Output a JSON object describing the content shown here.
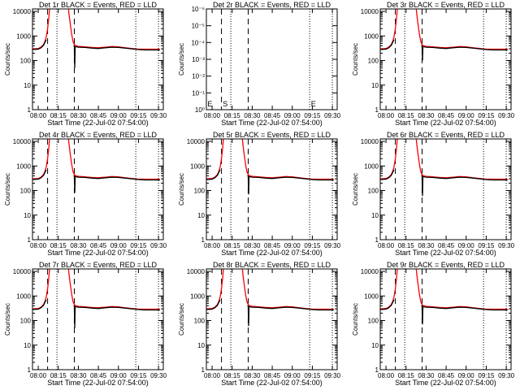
{
  "chart_data": {
    "type": "line",
    "layout": "3x3 grid",
    "xlabel": "Start Time (22-Jul-02 07:54:00)",
    "ylabel": "Counts/sec",
    "x_unit": "minutes after 08:00",
    "xlim": [
      -4.3,
      93.6
    ],
    "x_ticks": [
      0,
      15,
      30,
      45,
      60,
      75,
      90
    ],
    "x_tick_labels": [
      "08:00",
      "08:15",
      "08:30",
      "08:45",
      "09:00",
      "09:15",
      "09:30"
    ],
    "y_scale": "log",
    "ylim": [
      1,
      12600
    ],
    "y_ticks": [
      1,
      10,
      100,
      1000,
      10000
    ],
    "y_tick_labels": [
      "1",
      "10",
      "100",
      "1000",
      "10000"
    ],
    "colors": {
      "events": "#000000",
      "lld": "#ff0000"
    },
    "dashed_lines": [
      7,
      27
    ],
    "dotted_lines": [
      14,
      73,
      90
    ],
    "panels": [
      {
        "title": "Det 1r BLACK = Events, RED = LLD",
        "has_data": true,
        "dip": 50
      },
      {
        "title": "Det 2r BLACK = Events, RED = LLD",
        "has_data": false,
        "y_tick_labels": [
          "10⁰",
          "10⁻¹",
          "10⁻²",
          "10⁻³",
          "10⁻⁴",
          "10⁻⁵",
          "10⁻⁶"
        ],
        "markers": [
          {
            "label": "E",
            "x": -3.5
          },
          {
            "label": "S",
            "x": 8
          },
          {
            "label": "E",
            "x": 74
          }
        ]
      },
      {
        "title": "Det 3r BLACK = Events, RED = LLD",
        "has_data": true,
        "dip": 100
      },
      {
        "title": "Det 4r BLACK = Events, RED = LLD",
        "has_data": true,
        "dip": 80
      },
      {
        "title": "Det 5r BLACK = Events, RED = LLD",
        "has_data": true,
        "dip": 70
      },
      {
        "title": "Det 6r BLACK = Events, RED = LLD",
        "has_data": true,
        "dip": 60
      },
      {
        "title": "Det 7r BLACK = Events, RED = LLD",
        "has_data": true,
        "dip": 50
      },
      {
        "title": "Det 8r BLACK = Events, RED = LLD",
        "has_data": true,
        "dip": 60
      },
      {
        "title": "Det 9r BLACK = Events, RED = LLD",
        "has_data": true,
        "dip": 70
      }
    ],
    "series": [
      {
        "name": "Events",
        "color": "black",
        "x": [
          -4.3,
          0,
          2,
          4,
          5,
          6,
          null,
          26.5,
          27,
          27.3,
          27.6,
          30,
          35,
          40,
          45,
          50,
          55,
          60,
          65,
          70,
          75,
          80,
          85,
          90,
          91
        ],
        "y": [
          280,
          290,
          330,
          420,
          550,
          700,
          null,
          420,
          380,
          "dip",
          370,
          350,
          340,
          320,
          310,
          330,
          350,
          340,
          320,
          300,
          280,
          270,
          270,
          270,
          270
        ]
      },
      {
        "name": "LLD",
        "color": "red",
        "x": [
          -4.3,
          0,
          2,
          4,
          5,
          6,
          7,
          8,
          8.5,
          22.5,
          23,
          24,
          25,
          26,
          27,
          28,
          30,
          35,
          40,
          45,
          50,
          55,
          60,
          65,
          70,
          75,
          80,
          85,
          90,
          91
        ],
        "y": [
          300,
          310,
          350,
          450,
          600,
          900,
          2000,
          6000,
          15000,
          15000,
          8000,
          3000,
          1200,
          600,
          450,
          400,
          380,
          360,
          340,
          330,
          350,
          370,
          360,
          330,
          310,
          290,
          290,
          290,
          290,
          290
        ]
      }
    ]
  }
}
